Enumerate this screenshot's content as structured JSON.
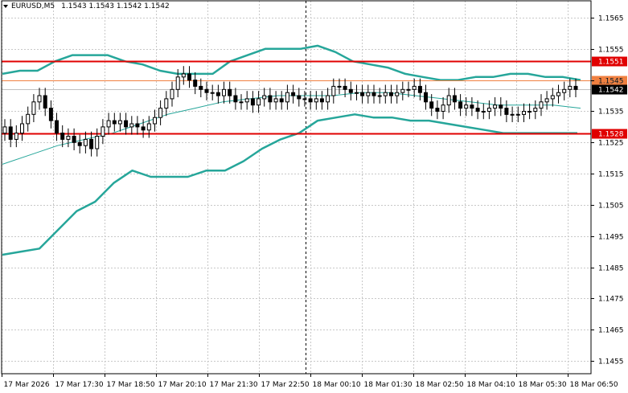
{
  "header": {
    "symbol": "EURUSD,M5",
    "ohlc": "1.1543 1.1543 1.1542 1.1542",
    "menu_icon": "triangle-down-icon"
  },
  "colors": {
    "background": "#ffffff",
    "grid": "#c8c8c8",
    "candle": "#000000",
    "bands": "#26a69a",
    "middle_band": "#26a69a",
    "level_line": "#e00000",
    "price_line": "#f08040",
    "current_price_bg": "#000000"
  },
  "chart_data": {
    "type": "candlestick",
    "title": "EURUSD,M5",
    "ylim": [
      1.145,
      1.157
    ],
    "y_ticks": [
      "1.1565",
      "1.1555",
      "1.1545",
      "1.1535",
      "1.1525",
      "1.1515",
      "1.1505",
      "1.1495",
      "1.1485",
      "1.1475",
      "1.1465",
      "1.1455"
    ],
    "x_ticks": [
      "17 Mar 2026",
      "17 Mar 17:30",
      "17 Mar 18:50",
      "17 Mar 20:10",
      "17 Mar 21:30",
      "17 Mar 22:50",
      "18 Mar 00:10",
      "18 Mar 01:30",
      "18 Mar 02:50",
      "18 Mar 04:10",
      "18 Mar 05:30",
      "18 Mar 06:50"
    ],
    "grid": true,
    "levels": [
      {
        "value": 1.1551,
        "label": "1.1551",
        "color": "#e00000"
      },
      {
        "value": 1.1528,
        "label": "1.1528",
        "color": "#e00000"
      }
    ],
    "price_lines": [
      {
        "value": 1.1545,
        "label": "1.1545",
        "color": "#f08040"
      },
      {
        "value": 1.1542,
        "label": "1.1542",
        "color": "#000000"
      }
    ],
    "session_separator_x": "18 Mar 00:10",
    "candles_close": [
      1.153,
      1.1526,
      1.1528,
      1.1531,
      1.1534,
      1.1538,
      1.154,
      1.1536,
      1.1532,
      1.1528,
      1.1526,
      1.1527,
      1.1525,
      1.1524,
      1.1526,
      1.1523,
      1.1527,
      1.153,
      1.1532,
      1.1531,
      1.1532,
      1.153,
      1.1531,
      1.153,
      1.1529,
      1.1531,
      1.1533,
      1.1536,
      1.1539,
      1.1542,
      1.1546,
      1.1547,
      1.1545,
      1.1543,
      1.1542,
      1.1541,
      1.1541,
      1.154,
      1.1542,
      1.154,
      1.1538,
      1.1538,
      1.1539,
      1.1537,
      1.1539,
      1.154,
      1.1538,
      1.1539,
      1.1538,
      1.1541,
      1.154,
      1.1539,
      1.1539,
      1.1538,
      1.1539,
      1.1538,
      1.154,
      1.1543,
      1.1543,
      1.1542,
      1.1541,
      1.1541,
      1.154,
      1.1541,
      1.154,
      1.154,
      1.1541,
      1.154,
      1.1541,
      1.1542,
      1.1542,
      1.1543,
      1.1541,
      1.1538,
      1.1536,
      1.1535,
      1.1537,
      1.154,
      1.1538,
      1.1536,
      1.1537,
      1.1536,
      1.1535,
      1.1535,
      1.1536,
      1.1537,
      1.1536,
      1.1534,
      1.1534,
      1.1534,
      1.1535,
      1.1535,
      1.1536,
      1.1538,
      1.1539,
      1.154,
      1.1541,
      1.1542,
      1.1543,
      1.1542
    ],
    "upper_band": [
      1.1547,
      1.1548,
      1.1548,
      1.1551,
      1.1553,
      1.1553,
      1.1553,
      1.1551,
      1.155,
      1.1548,
      1.1547,
      1.1547,
      1.1547,
      1.1551,
      1.1553,
      1.1555,
      1.1555,
      1.1555,
      1.1556,
      1.1554,
      1.1551,
      1.155,
      1.1549,
      1.1547,
      1.1546,
      1.1545,
      1.1545,
      1.1546,
      1.1546,
      1.1547,
      1.1547,
      1.1546,
      1.1546,
      1.1545
    ],
    "lower_band": [
      1.1489,
      1.149,
      1.1491,
      1.1497,
      1.1503,
      1.1506,
      1.1512,
      1.1516,
      1.1514,
      1.1514,
      1.1514,
      1.1516,
      1.1516,
      1.1519,
      1.1523,
      1.1526,
      1.1528,
      1.1532,
      1.1533,
      1.1534,
      1.1533,
      1.1533,
      1.1532,
      1.1532,
      1.1531,
      1.153,
      1.1529,
      1.1528,
      1.1528,
      1.1528,
      1.1528,
      1.1528
    ],
    "middle_band": [
      1.1518,
      1.1521,
      1.1524,
      1.1526,
      1.1528,
      1.1531,
      1.1534,
      1.1536,
      1.1538,
      1.1539,
      1.154,
      1.154,
      1.154,
      1.1541,
      1.1541,
      1.154,
      1.1539,
      1.1538,
      1.1537,
      1.1537,
      1.1537,
      1.1536
    ]
  }
}
